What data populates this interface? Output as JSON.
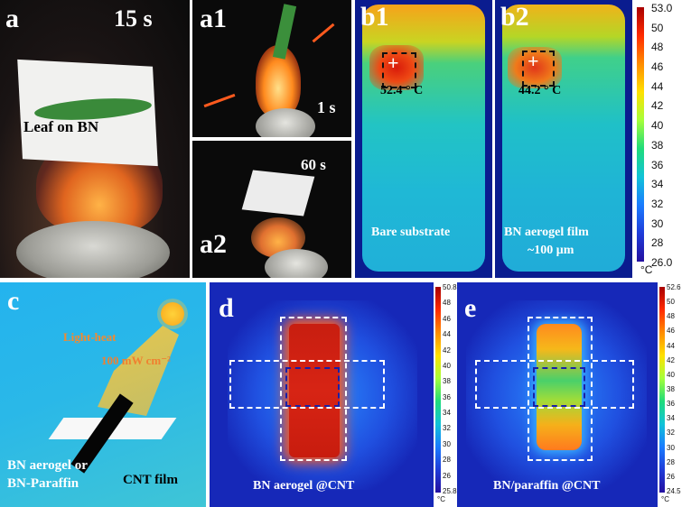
{
  "panels": {
    "a": {
      "label": "a",
      "time": "15 s",
      "caption": "Leaf  on BN"
    },
    "a1": {
      "label": "a1",
      "time": "1 s"
    },
    "a2": {
      "label": "a2",
      "time": "60 s"
    },
    "b1": {
      "label": "b1",
      "temp": "52.4",
      "temp_unit": "°  C",
      "caption": "Bare substrate"
    },
    "b2": {
      "label": "b2",
      "temp": "44.2",
      "temp_unit": "°  C",
      "caption_line1": "BN aerogel film",
      "caption_line2": "~100 μm"
    },
    "c": {
      "label": "c",
      "light_line1": "Light-heat",
      "light_line2": "100 mW cm⁻²",
      "material_line1": "BN aerogel or",
      "material_line2": "BN-Paraffin",
      "cnt_label": "CNT film"
    },
    "d": {
      "label": "d",
      "caption": "BN aerogel @CNT"
    },
    "e": {
      "label": "e",
      "caption": "BN/paraffin @CNT"
    }
  },
  "colorbar_b": {
    "ticks": [
      "53.0",
      "50",
      "48",
      "46",
      "44",
      "42",
      "40",
      "38",
      "36",
      "34",
      "32",
      "30",
      "28",
      "26.0"
    ],
    "unit": "°C"
  },
  "colorbar_d": {
    "ticks": [
      "50.8",
      "48",
      "46",
      "44",
      "42",
      "40",
      "38",
      "36",
      "34",
      "32",
      "30",
      "28",
      "26",
      "25.8"
    ],
    "unit": "°C"
  },
  "colorbar_e": {
    "ticks": [
      "52.6",
      "50",
      "48",
      "46",
      "44",
      "42",
      "40",
      "38",
      "36",
      "34",
      "32",
      "30",
      "28",
      "26",
      "24.5"
    ],
    "unit": "°C"
  },
  "colors": {
    "hot": "#e0301a",
    "cold": "#1628b8",
    "sky": "#2ab8e8"
  }
}
